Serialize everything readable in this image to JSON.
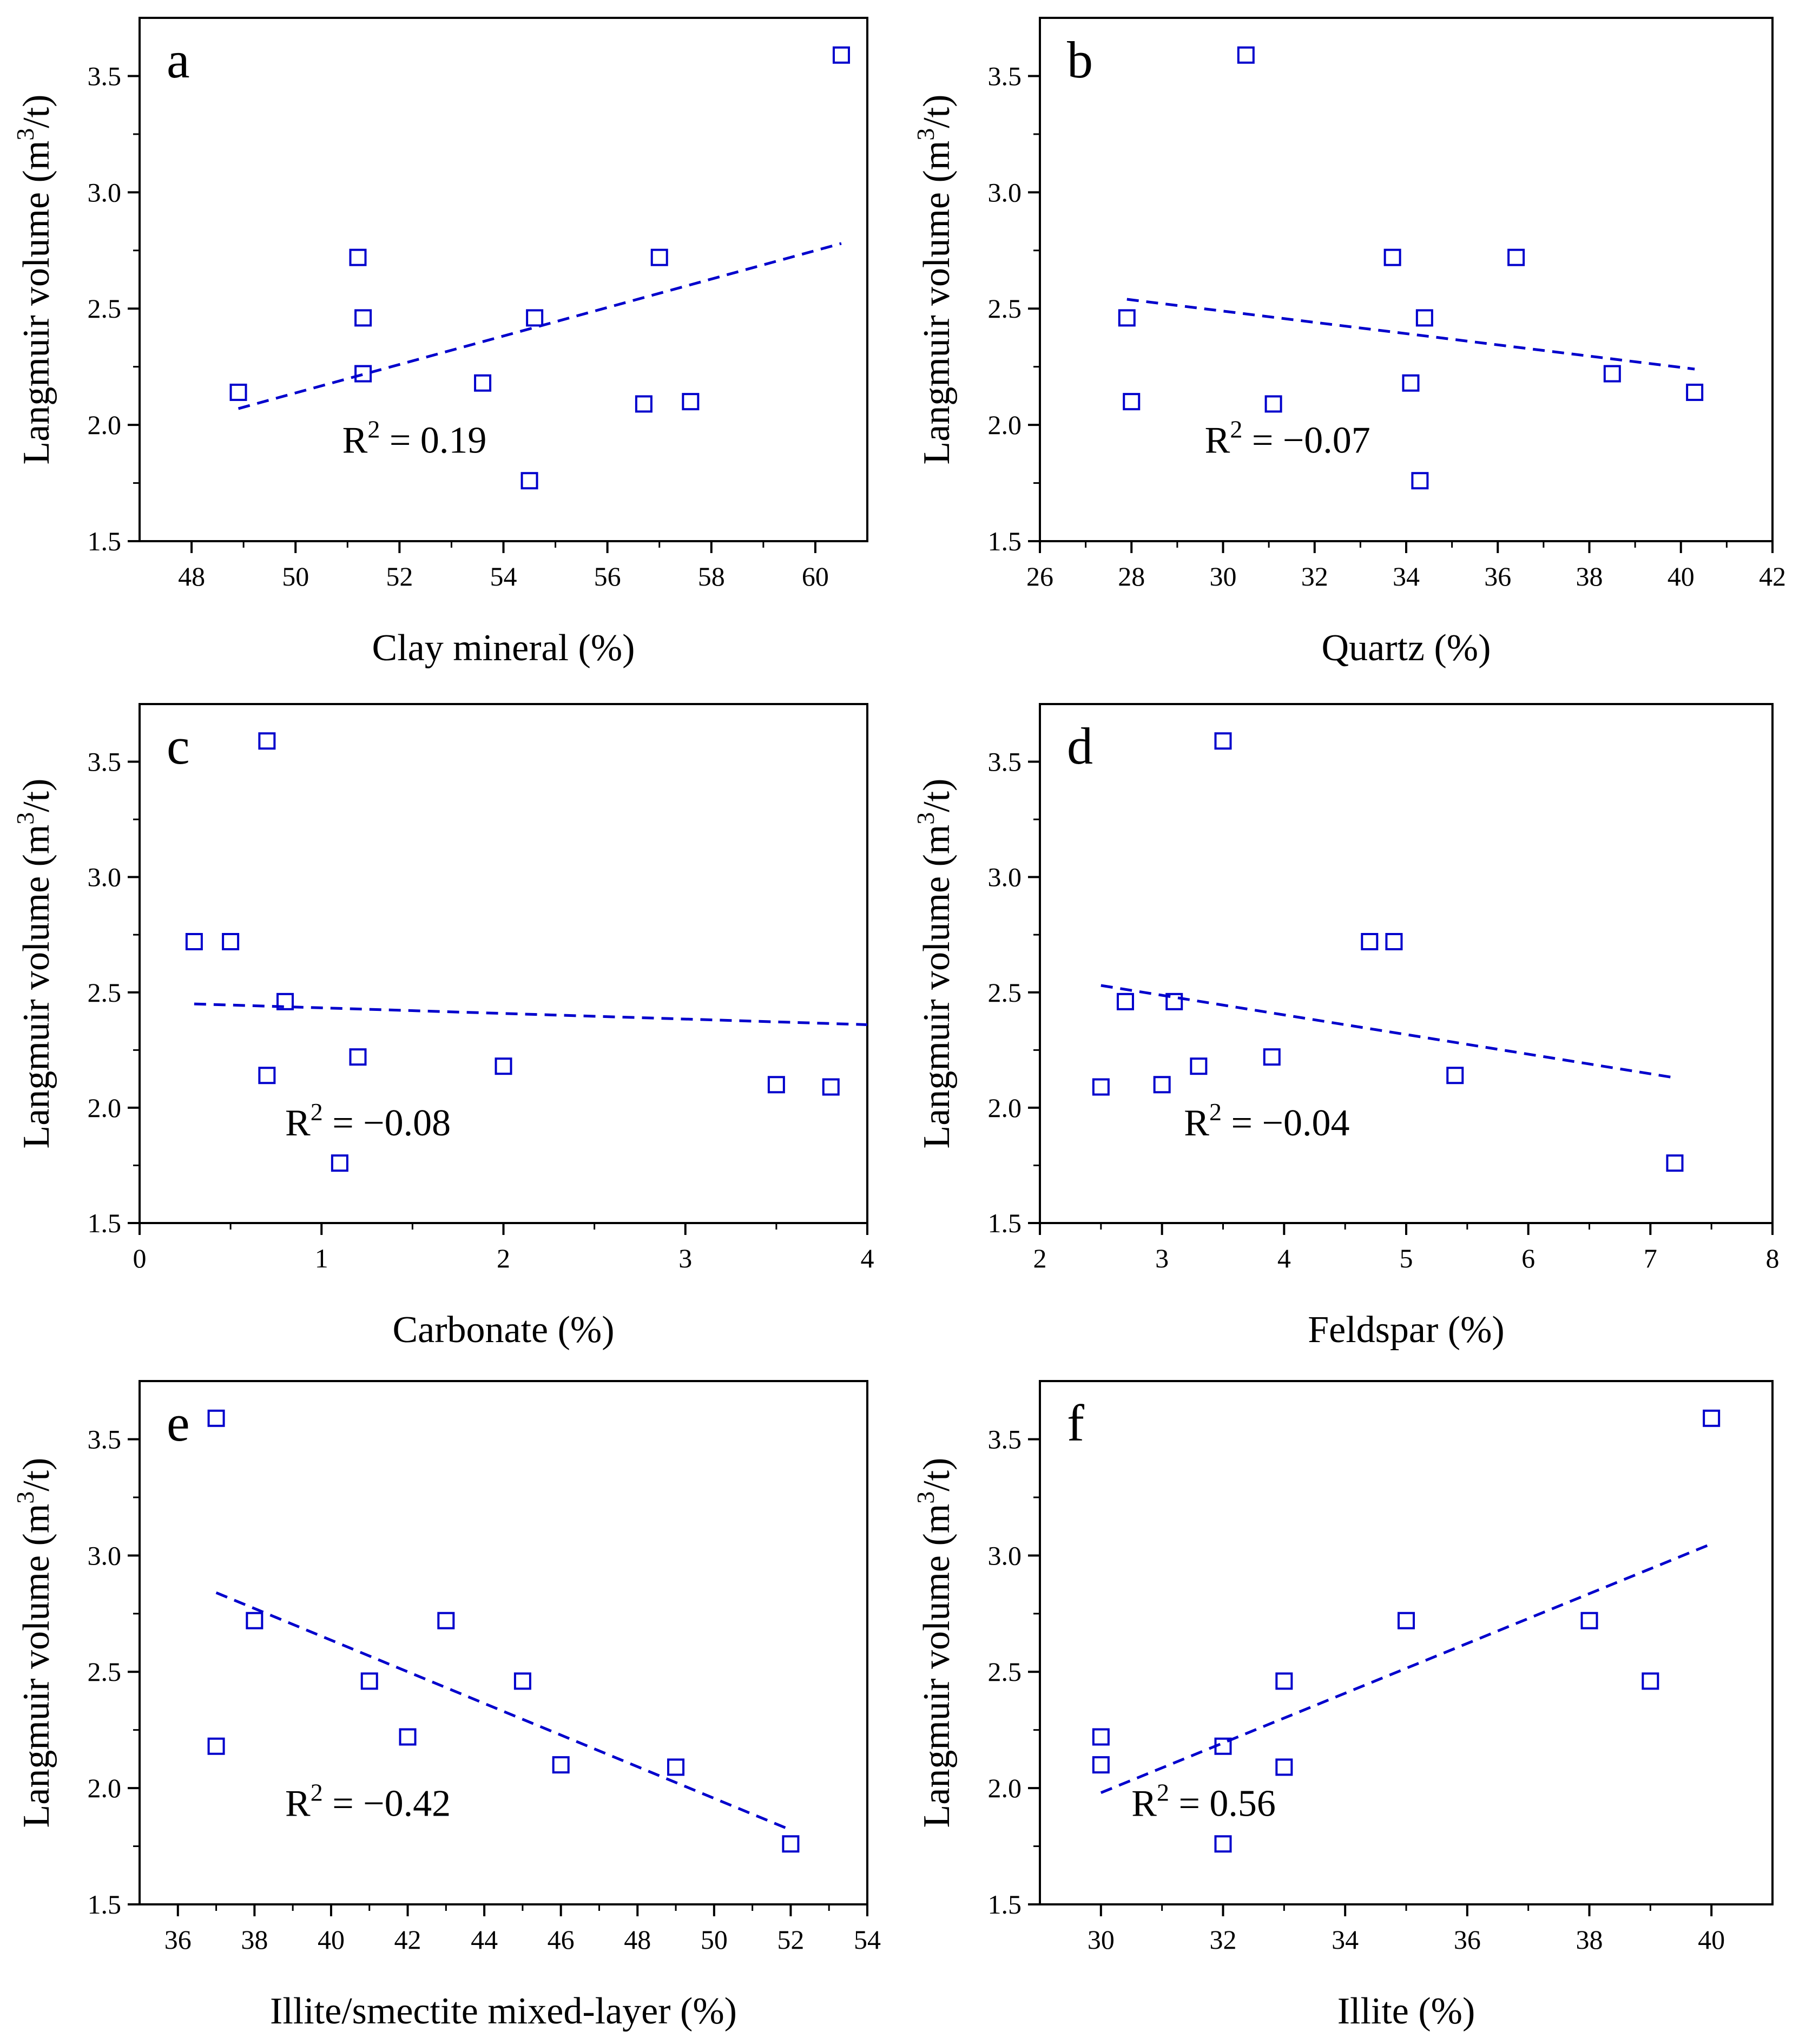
{
  "figure": {
    "marker_color": "#0000cc",
    "line_color": "#0000cc",
    "axis_color": "#000000"
  },
  "chart_data": [
    {
      "type": "scatter",
      "panel": "a",
      "xlabel": "Clay mineral (%)",
      "ylabel_base": "Langmuir volume (m",
      "ylabel_sup": "3",
      "ylabel_end": "/t)",
      "xlim": [
        47,
        61
      ],
      "ylim": [
        1.5,
        3.75
      ],
      "xticks": [
        48,
        50,
        52,
        54,
        56,
        58,
        60
      ],
      "yticks": [
        1.5,
        2.0,
        2.5,
        3.0,
        3.5
      ],
      "points": [
        [
          48.9,
          2.14
        ],
        [
          51.2,
          2.72
        ],
        [
          51.3,
          2.46
        ],
        [
          51.3,
          2.22
        ],
        [
          53.6,
          2.18
        ],
        [
          54.5,
          1.76
        ],
        [
          54.6,
          2.46
        ],
        [
          56.7,
          2.09
        ],
        [
          57.0,
          2.72
        ],
        [
          57.6,
          2.1
        ],
        [
          60.5,
          3.59
        ]
      ],
      "fit": [
        [
          48.9,
          2.07
        ],
        [
          60.5,
          2.78
        ]
      ],
      "r2_label": "R",
      "r2_sup": "2",
      "r2_value": " = 0.19",
      "r2_at": [
        50.9,
        1.88
      ]
    },
    {
      "type": "scatter",
      "panel": "b",
      "xlabel": "Quartz (%)",
      "ylabel_base": "Langmuir volume (m",
      "ylabel_sup": "3",
      "ylabel_end": "/t)",
      "xlim": [
        26,
        42
      ],
      "ylim": [
        1.5,
        3.75
      ],
      "xticks": [
        26,
        28,
        30,
        32,
        34,
        36,
        38,
        40,
        42
      ],
      "yticks": [
        1.5,
        2.0,
        2.5,
        3.0,
        3.5
      ],
      "points": [
        [
          27.9,
          2.46
        ],
        [
          28.0,
          2.1
        ],
        [
          30.5,
          3.59
        ],
        [
          31.1,
          2.09
        ],
        [
          33.7,
          2.72
        ],
        [
          34.1,
          2.18
        ],
        [
          34.3,
          1.76
        ],
        [
          34.4,
          2.46
        ],
        [
          36.4,
          2.72
        ],
        [
          38.5,
          2.22
        ],
        [
          40.3,
          2.14
        ]
      ],
      "fit": [
        [
          27.9,
          2.54
        ],
        [
          40.3,
          2.24
        ]
      ],
      "r2_label": "R",
      "r2_sup": "2",
      "r2_value": " = −0.07",
      "r2_at": [
        29.6,
        1.88
      ]
    },
    {
      "type": "scatter",
      "panel": "c",
      "xlabel": "Carbonate (%)",
      "ylabel_base": "Langmuir volume (m",
      "ylabel_sup": "3",
      "ylabel_end": "/t)",
      "xlim": [
        0,
        4
      ],
      "ylim": [
        1.5,
        3.75
      ],
      "xticks": [
        0,
        1,
        2,
        3,
        4
      ],
      "yticks": [
        1.5,
        2.0,
        2.5,
        3.0,
        3.5
      ],
      "points": [
        [
          0.3,
          2.72
        ],
        [
          0.5,
          2.72
        ],
        [
          0.7,
          3.59
        ],
        [
          0.7,
          2.14
        ],
        [
          0.8,
          2.46
        ],
        [
          1.1,
          1.76
        ],
        [
          1.2,
          2.22
        ],
        [
          2.0,
          2.18
        ],
        [
          3.5,
          2.1
        ],
        [
          3.8,
          2.09
        ]
      ],
      "fit": [
        [
          0.3,
          2.45
        ],
        [
          4.0,
          2.36
        ]
      ],
      "r2_label": "R",
      "r2_sup": "2",
      "r2_value": " = −0.08",
      "r2_at": [
        0.8,
        1.88
      ]
    },
    {
      "type": "scatter",
      "panel": "d",
      "xlabel": "Feldspar (%)",
      "ylabel_base": "Langmuir volume (m",
      "ylabel_sup": "3",
      "ylabel_end": "/t)",
      "xlim": [
        2,
        8
      ],
      "ylim": [
        1.5,
        3.75
      ],
      "xticks": [
        2,
        3,
        4,
        5,
        6,
        7,
        8
      ],
      "yticks": [
        1.5,
        2.0,
        2.5,
        3.0,
        3.5
      ],
      "points": [
        [
          2.5,
          2.09
        ],
        [
          2.7,
          2.46
        ],
        [
          3.0,
          2.1
        ],
        [
          3.1,
          2.46
        ],
        [
          3.3,
          2.18
        ],
        [
          3.5,
          3.59
        ],
        [
          3.9,
          2.22
        ],
        [
          4.7,
          2.72
        ],
        [
          4.9,
          2.72
        ],
        [
          5.4,
          2.14
        ],
        [
          7.2,
          1.76
        ]
      ],
      "fit": [
        [
          2.5,
          2.53
        ],
        [
          7.2,
          2.13
        ]
      ],
      "r2_label": "R",
      "r2_sup": "2",
      "r2_value": " = −0.04",
      "r2_at": [
        3.18,
        1.88
      ]
    },
    {
      "type": "scatter",
      "panel": "e",
      "xlabel": "Illite/smectite mixed-layer (%)",
      "ylabel_base": "Langmuir volume (m",
      "ylabel_sup": "3",
      "ylabel_end": "/t)",
      "xlim": [
        35,
        54
      ],
      "ylim": [
        1.5,
        3.75
      ],
      "xticks": [
        36,
        38,
        40,
        42,
        44,
        46,
        48,
        50,
        52,
        54
      ],
      "yticks": [
        1.5,
        2.0,
        2.5,
        3.0,
        3.5
      ],
      "points": [
        [
          37.0,
          3.59
        ],
        [
          37.0,
          2.18
        ],
        [
          38.0,
          2.72
        ],
        [
          41.0,
          2.46
        ],
        [
          42.0,
          2.22
        ],
        [
          43.0,
          2.72
        ],
        [
          45.0,
          2.46
        ],
        [
          46.0,
          2.1
        ],
        [
          49.0,
          2.09
        ],
        [
          52.0,
          1.76
        ]
      ],
      "fit": [
        [
          37.0,
          2.84
        ],
        [
          52.0,
          1.82
        ]
      ],
      "r2_label": "R",
      "r2_sup": "2",
      "r2_value": " = −0.42",
      "r2_at": [
        38.8,
        1.88
      ]
    },
    {
      "type": "scatter",
      "panel": "f",
      "xlabel": "Illite (%)",
      "ylabel_base": "Langmuir volume (m",
      "ylabel_sup": "3",
      "ylabel_end": "/t)",
      "xlim": [
        29,
        41
      ],
      "ylim": [
        1.5,
        3.75
      ],
      "xticks": [
        30,
        32,
        34,
        36,
        38,
        40
      ],
      "yticks": [
        1.5,
        2.0,
        2.5,
        3.0,
        3.5
      ],
      "points": [
        [
          30.0,
          2.22
        ],
        [
          30.0,
          2.1
        ],
        [
          32.0,
          2.18
        ],
        [
          32.0,
          1.76
        ],
        [
          33.0,
          2.46
        ],
        [
          33.0,
          2.09
        ],
        [
          35.0,
          2.72
        ],
        [
          38.0,
          2.72
        ],
        [
          39.0,
          2.46
        ],
        [
          40.0,
          3.59
        ]
      ],
      "fit": [
        [
          30.0,
          1.98
        ],
        [
          40.0,
          3.05
        ]
      ],
      "r2_label": "R",
      "r2_sup": "2",
      "r2_value": " = 0.56",
      "r2_at": [
        30.5,
        1.88
      ]
    }
  ]
}
